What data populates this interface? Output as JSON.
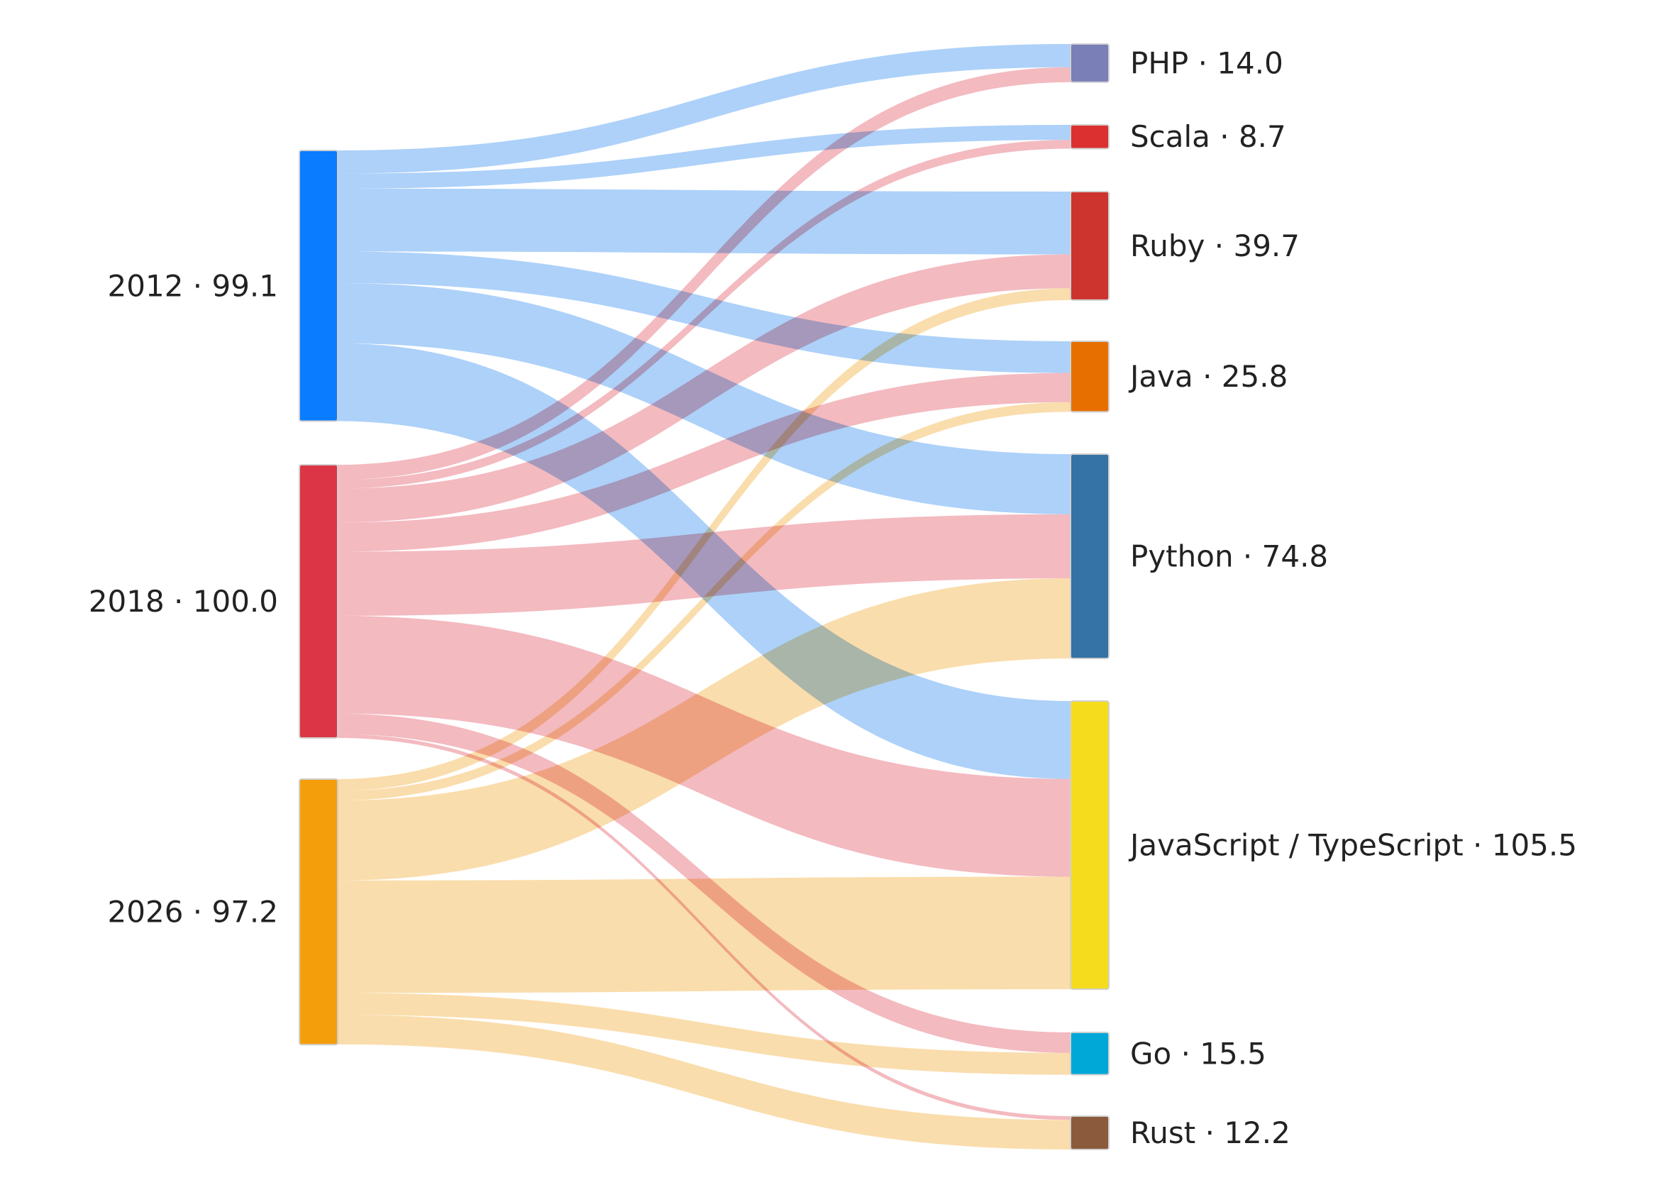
{
  "chart_data": {
    "type": "sankey",
    "title": "",
    "sources": [
      {
        "id": "2012",
        "label": "2012 · 99.1",
        "value": 99.1,
        "color": "#0a7cff",
        "link_color": "#a9cff9"
      },
      {
        "id": "2018",
        "label": "2018 · 100.0",
        "value": 100.0,
        "color": "#dc3545",
        "link_color": "#f2b6bd"
      },
      {
        "id": "2026",
        "label": "2026 · 97.2",
        "value": 97.2,
        "color": "#f59e0b",
        "link_color": "#fadba8"
      }
    ],
    "targets": [
      {
        "id": "php",
        "label": "PHP · 14.0",
        "value": 14.0,
        "color": "#7a7fb8"
      },
      {
        "id": "scala",
        "label": "Scala · 8.7",
        "value": 8.7,
        "color": "#dc3030"
      },
      {
        "id": "ruby",
        "label": "Ruby · 39.7",
        "value": 39.7,
        "color": "#cc342d"
      },
      {
        "id": "java",
        "label": "Java · 25.8",
        "value": 25.8,
        "color": "#e76f00"
      },
      {
        "id": "python",
        "label": "Python · 74.8",
        "value": 74.8,
        "color": "#3572a5"
      },
      {
        "id": "jsts",
        "label": "JavaScript / TypeScript · 105.5",
        "value": 105.5,
        "color": "#f5dd1e"
      },
      {
        "id": "go",
        "label": "Go · 15.5",
        "value": 15.5,
        "color": "#00a8d8"
      },
      {
        "id": "rust",
        "label": "Rust · 12.2",
        "value": 12.2,
        "color": "#8b5a3c"
      }
    ],
    "links": [
      {
        "source": "2012",
        "target": "php",
        "value": 8.5
      },
      {
        "source": "2012",
        "target": "scala",
        "value": 5.5
      },
      {
        "source": "2012",
        "target": "ruby",
        "value": 23.0
      },
      {
        "source": "2012",
        "target": "java",
        "value": 11.6
      },
      {
        "source": "2012",
        "target": "python",
        "value": 22.0
      },
      {
        "source": "2012",
        "target": "jsts",
        "value": 28.5
      },
      {
        "source": "2018",
        "target": "php",
        "value": 5.5
      },
      {
        "source": "2018",
        "target": "scala",
        "value": 3.2
      },
      {
        "source": "2018",
        "target": "ruby",
        "value": 12.4
      },
      {
        "source": "2018",
        "target": "java",
        "value": 10.7
      },
      {
        "source": "2018",
        "target": "python",
        "value": 23.5
      },
      {
        "source": "2018",
        "target": "jsts",
        "value": 35.8
      },
      {
        "source": "2018",
        "target": "go",
        "value": 7.5
      },
      {
        "source": "2018",
        "target": "rust",
        "value": 1.4
      },
      {
        "source": "2026",
        "target": "ruby",
        "value": 4.3
      },
      {
        "source": "2026",
        "target": "java",
        "value": 3.5
      },
      {
        "source": "2026",
        "target": "python",
        "value": 29.3
      },
      {
        "source": "2026",
        "target": "jsts",
        "value": 41.2
      },
      {
        "source": "2026",
        "target": "go",
        "value": 8.0
      },
      {
        "source": "2026",
        "target": "rust",
        "value": 10.8
      }
    ]
  }
}
